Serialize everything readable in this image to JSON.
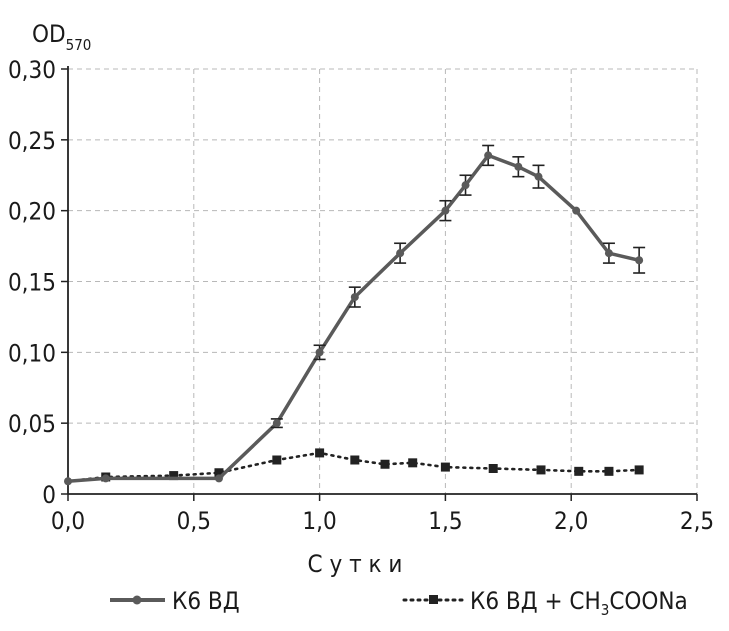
{
  "chart_data": {
    "type": "line",
    "title": "",
    "ylabel": "OD",
    "ylabel_sub": "570",
    "xlabel": "С у т к и",
    "xlim": [
      0.0,
      2.5
    ],
    "ylim": [
      0,
      0.3
    ],
    "grid": true,
    "legend_position": "bottom",
    "x_ticks": [
      0.0,
      0.5,
      1.0,
      1.5,
      2.0,
      2.5
    ],
    "x_tick_labels": [
      "0,0",
      "0,5",
      "1,0",
      "1,5",
      "2,0",
      "2,5"
    ],
    "y_ticks": [
      0,
      0.05,
      0.1,
      0.15,
      0.2,
      0.25,
      0.3
    ],
    "y_tick_labels": [
      "0",
      "0,05",
      "0,10",
      "0,15",
      "0,20",
      "0,25",
      "0,30"
    ],
    "series": [
      {
        "name": "К6 ВД",
        "style": "solid",
        "marker": "circle",
        "color": "#5a5a5a",
        "x": [
          0.0,
          0.15,
          0.6,
          0.83,
          1.0,
          1.14,
          1.32,
          1.5,
          1.58,
          1.67,
          1.79,
          1.87,
          2.02,
          2.15,
          2.27
        ],
        "y": [
          0.009,
          0.011,
          0.011,
          0.05,
          0.1,
          0.139,
          0.17,
          0.2,
          0.218,
          0.239,
          0.231,
          0.224,
          0.2,
          0.17,
          0.165
        ],
        "error": [
          0,
          0,
          0,
          0.003,
          0.005,
          0.007,
          0.007,
          0.007,
          0.007,
          0.007,
          0.007,
          0.008,
          0,
          0.007,
          0.009
        ]
      },
      {
        "name_main": "К6 ВД + CH",
        "name_sub": "3",
        "name_tail": "COONa",
        "style": "dotted",
        "marker": "square",
        "color": "#222222",
        "x": [
          0.0,
          0.15,
          0.42,
          0.6,
          0.83,
          1.0,
          1.14,
          1.26,
          1.37,
          1.5,
          1.69,
          1.88,
          2.03,
          2.15,
          2.27
        ],
        "y": [
          0.009,
          0.012,
          0.013,
          0.015,
          0.024,
          0.029,
          0.024,
          0.021,
          0.022,
          0.019,
          0.018,
          0.017,
          0.016,
          0.016,
          0.017
        ]
      }
    ]
  }
}
